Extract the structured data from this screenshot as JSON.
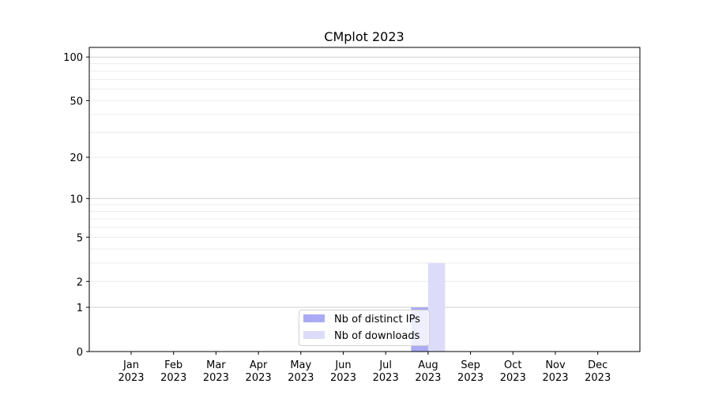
{
  "chart_data": {
    "type": "bar",
    "title": "CMplot 2023",
    "xlabel": "",
    "ylabel": "",
    "y_scale": "log(1+y)",
    "ylim": [
      0,
      116
    ],
    "grid": "horizontal major and minor",
    "legend_position": "lower-center",
    "categories": [
      "Jan\n2023",
      "Feb\n2023",
      "Mar\n2023",
      "Apr\n2023",
      "May\n2023",
      "Jun\n2023",
      "Jul\n2023",
      "Aug\n2023",
      "Sep\n2023",
      "Oct\n2023",
      "Nov\n2023",
      "Dec\n2023"
    ],
    "yticks": [
      0,
      1,
      2,
      5,
      10,
      20,
      50,
      100
    ],
    "series": [
      {
        "name": "Nb of distinct IPs",
        "color": "#aaaaf5",
        "values": [
          0,
          0,
          0,
          0,
          0,
          0,
          0,
          1,
          0,
          0,
          0,
          0
        ]
      },
      {
        "name": "Nb of downloads",
        "color": "#dcdcfa",
        "values": [
          0,
          0,
          0,
          0,
          0,
          0,
          0,
          3,
          0,
          0,
          0,
          0
        ]
      }
    ]
  }
}
